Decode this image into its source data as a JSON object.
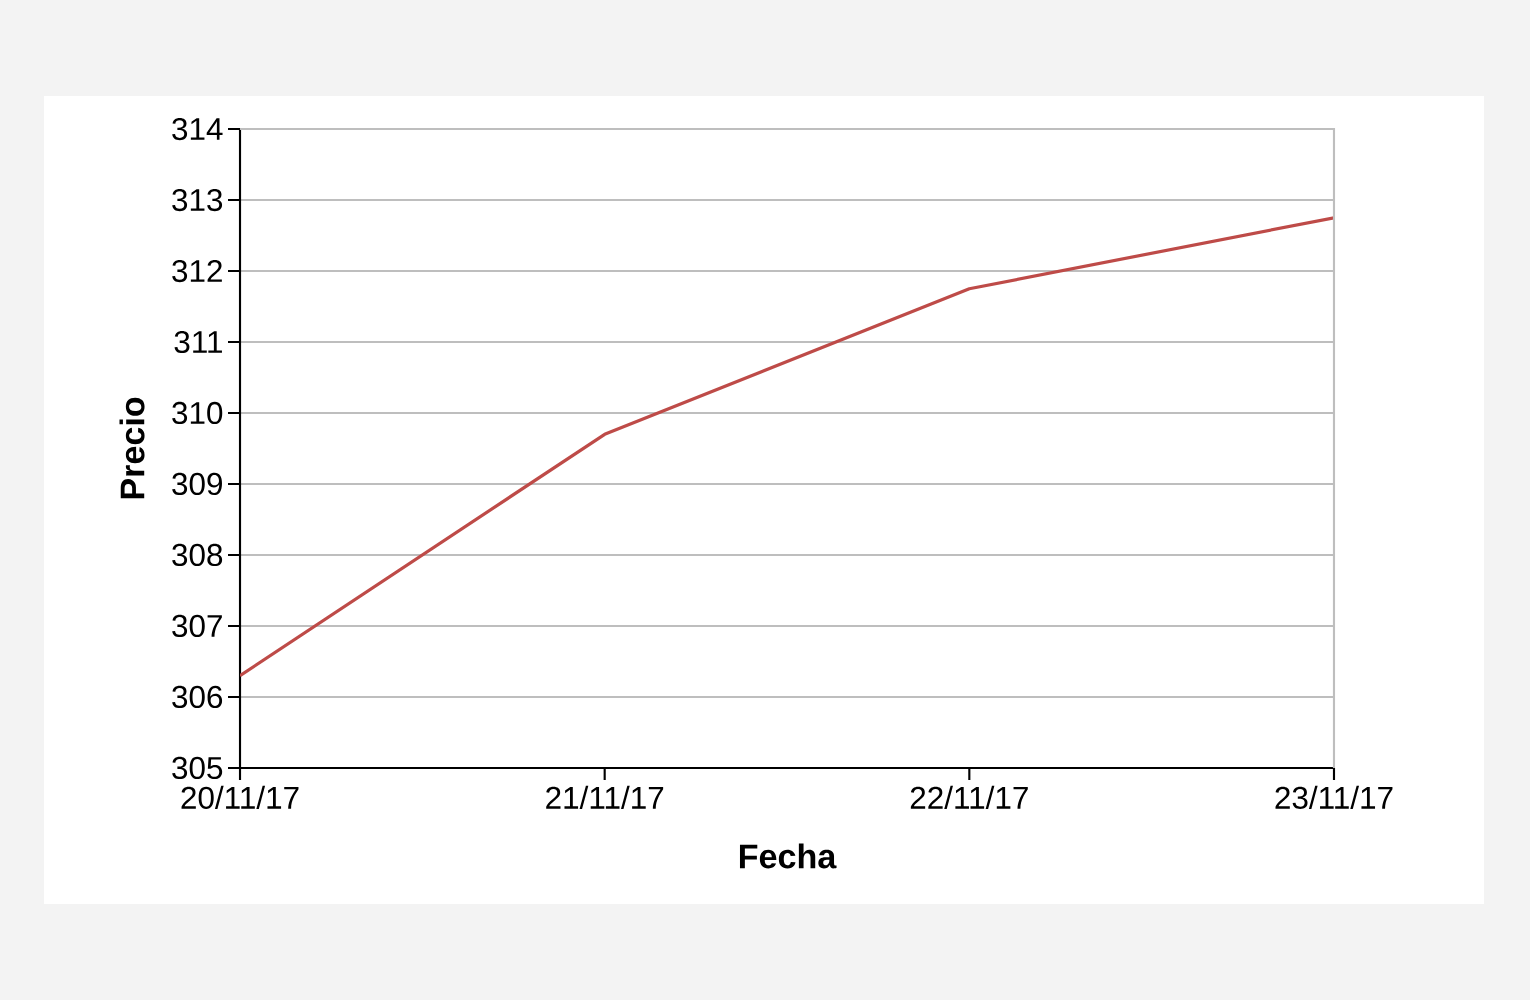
{
  "chart_data": {
    "type": "line",
    "xlabel": "Fecha",
    "ylabel": "Precio",
    "categories": [
      "20/11/17",
      "21/11/17",
      "22/11/17",
      "23/11/17"
    ],
    "series": [
      {
        "color": "#be4b48",
        "values": [
          306.3,
          309.7,
          311.75,
          312.75
        ]
      }
    ],
    "ylim": [
      305,
      314
    ],
    "yticks": [
      305,
      306,
      307,
      308,
      309,
      310,
      311,
      312,
      313,
      314
    ],
    "grid": "y",
    "line_style": "solid"
  }
}
